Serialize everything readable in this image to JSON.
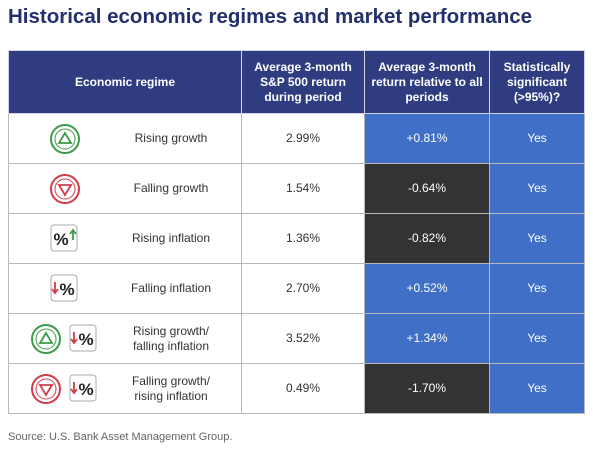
{
  "title": "Historical economic regimes and market performance",
  "table": {
    "header": [
      "Economic regime",
      "Average 3-month S&P 500 return during period",
      "Average 3-month return relative to all periods",
      "Statistically significant (>95%)?"
    ],
    "rows": [
      [
        "Rising growth",
        "2.99%",
        "+0.81%",
        "Yes"
      ],
      [
        "Falling growth",
        "1.54%",
        "-0.64%",
        "Yes"
      ],
      [
        "Rising inflation",
        "1.36%",
        "-0.82%",
        "Yes"
      ],
      [
        "Falling inflation",
        "2.70%",
        "+0.52%",
        "Yes"
      ],
      [
        "Rising growth/ falling inflation",
        "3.52%",
        "+1.34%",
        "Yes"
      ],
      [
        "Falling growth/ rising inflation",
        "0.49%",
        "-1.70%",
        "Yes"
      ]
    ]
  },
  "source": "Source: U.S. Bank Asset Management Group."
}
